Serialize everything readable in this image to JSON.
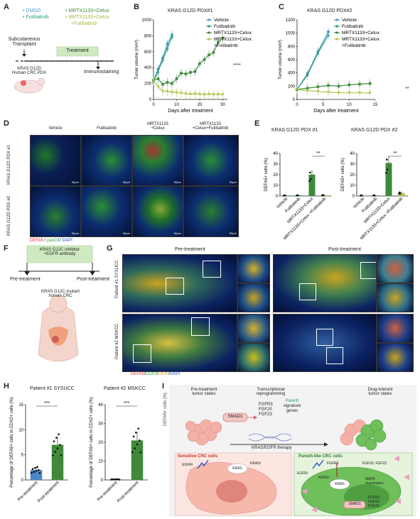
{
  "panels": {
    "A": {
      "letter": "A",
      "legend": [
        "• DMSO",
        "• Futibatinib",
        "• MRTX1133+Cetux",
        "• MRTX1133+Cetux",
        "+Futibatinib"
      ],
      "transplant": [
        "Subcutaneous",
        "Transplant"
      ],
      "treatment": "Treatment",
      "immuno": "Immunostaining",
      "model": [
        "KRAS G12D",
        "Human CRC PDX"
      ]
    },
    "B": {
      "letter": "B",
      "title": "KRAS G12D PDX#1",
      "sig": "****"
    },
    "C": {
      "letter": "C",
      "title": "KRAS G12D PDX#2",
      "sig": "**"
    },
    "D": {
      "letter": "D",
      "cols": [
        "Vehicle",
        "Futibatinib",
        "MRTX1133",
        "+Cetux",
        "MRTX1133",
        "+Cetux+Futibatinib"
      ],
      "rows": [
        "KRAS G12D PDX #1",
        "KRAS G12D PDX #2"
      ],
      "scalebar": "50µm",
      "stain": {
        "defa5": "DEFA5",
        "sep1": " / ",
        "panck": "panCK",
        "sep2": "/ ",
        "dapi": "DAPI"
      }
    },
    "E": {
      "letter": "E",
      "titles": [
        "KRAS G12D PDX #1",
        "KRAS G12D PDX #2"
      ],
      "sig": "**"
    },
    "F": {
      "letter": "F",
      "box": [
        "KRAS G12C inhibitor",
        "+EGFR antibody"
      ],
      "pre": "Pre-treatment",
      "post": "Post-treatment",
      "model": [
        "KRAS G12C-mutant",
        "human CRC"
      ]
    },
    "G": {
      "letter": "G",
      "headers": [
        "Pre-treatment",
        "Post-treatment"
      ],
      "rows": [
        "Patient #1 SYSUCC",
        "Patient #2 MSKCC"
      ],
      "stain": {
        "defa5": "DEFA5",
        "s1": "/",
        "cdx2": "CDX2",
        "s2": "/",
        "ck20": "CK20",
        "s3": "/",
        "dapi": "DAPI"
      }
    },
    "H": {
      "letter": "H",
      "titles": [
        "Patient #1 SYSUCC",
        "Patient #2 MSKCC"
      ],
      "sig": "***"
    },
    "I": {
      "letter": "I",
      "pre_state": [
        "Pre-treatment",
        "tumor states"
      ],
      "reprogram": [
        "Transcriptional",
        "reprogramming"
      ],
      "smad1": "SMAD1",
      "genes": [
        "FGFR3",
        "FGF20",
        "FGF23"
      ],
      "paneth": [
        "Paneth",
        "signature",
        "genes"
      ],
      "therapy": "KRAS/EGFR therapy",
      "tolerant": [
        "Drug-tolerant",
        "tumor states"
      ],
      "sensitive_title": "Sensitive CRC cells",
      "paneth_title": "Paneth-like CRC cells",
      "egfri": "EGFRi",
      "kras": "KRAS",
      "krasi": "KRASi",
      "fgfr3": "FGFR3",
      "fgf": "FGF20, FGF23",
      "mapk": [
        "MAPK",
        "reactivation"
      ],
      "ygap": "DEFA5+ cells (%)"
    }
  },
  "chart_data": [
    {
      "id": "B",
      "type": "line",
      "title": "KRAS G12D PDX#1",
      "xlabel": "Days after treatment",
      "ylabel": "Tumor volume (mm³)",
      "xlim": [
        0,
        32
      ],
      "ylim": [
        0,
        1000
      ],
      "xticks": [
        0,
        10,
        20,
        30
      ],
      "yticks": [
        0,
        200,
        400,
        600,
        800,
        1000
      ],
      "legend": [
        "Vehicle",
        "Futibatinib",
        "MRTX1133+Cetux",
        "MRTX1133+Cetux",
        "+Futibatinib"
      ],
      "series": [
        {
          "name": "Vehicle",
          "color": "#4a9cd0",
          "x": [
            0,
            2,
            4,
            6,
            8
          ],
          "y": [
            240,
            380,
            520,
            700,
            810
          ]
        },
        {
          "name": "Futibatinib",
          "color": "#2f9c7e",
          "x": [
            0,
            2,
            4,
            6,
            8
          ],
          "y": [
            230,
            350,
            500,
            640,
            790
          ]
        },
        {
          "name": "MRTX1133+Cetux",
          "color": "#3f8a3a",
          "x": [
            0,
            2,
            4,
            6,
            8,
            10,
            12,
            14,
            16,
            18,
            20,
            22,
            24,
            26,
            28,
            30
          ],
          "y": [
            240,
            260,
            190,
            215,
            200,
            260,
            330,
            320,
            340,
            350,
            450,
            500,
            560,
            590,
            720,
            770
          ]
        },
        {
          "name": "MRTX1133+Cetux +Futibatinib",
          "color": "#b2c44a",
          "x": [
            0,
            2,
            4,
            6,
            8,
            10,
            12,
            14,
            16,
            18,
            20,
            22,
            24,
            26,
            28,
            30
          ],
          "y": [
            235,
            160,
            100,
            100,
            90,
            85,
            80,
            70,
            65,
            70,
            65,
            60,
            65,
            60,
            62,
            60
          ]
        }
      ]
    },
    {
      "id": "C",
      "type": "line",
      "title": "KRAS G12D PDX#2",
      "xlabel": "Days after treatment",
      "ylabel": "Tumor volume (mm³)",
      "xlim": [
        0,
        15
      ],
      "ylim": [
        0,
        1200
      ],
      "xticks": [
        0,
        5,
        10,
        15
      ],
      "yticks": [
        0,
        200,
        400,
        600,
        800,
        1000,
        1200
      ],
      "legend": [
        "Vehicle",
        "Futibatinib",
        "MRTX1133+Cetux",
        "MRTX1133+Cetux",
        "+Futibatinib"
      ],
      "series": [
        {
          "name": "Vehicle",
          "color": "#4a9cd0",
          "x": [
            0,
            2,
            4,
            6
          ],
          "y": [
            150,
            390,
            720,
            1020
          ]
        },
        {
          "name": "Futibatinib",
          "color": "#2f9c7e",
          "x": [
            0,
            2,
            4,
            6
          ],
          "y": [
            150,
            370,
            700,
            970
          ]
        },
        {
          "name": "MRTX1133+Cetux",
          "color": "#3f8a3a",
          "x": [
            0,
            2,
            4,
            6,
            8,
            10,
            12,
            14
          ],
          "y": [
            150,
            170,
            190,
            210,
            200,
            220,
            230,
            240
          ]
        },
        {
          "name": "MRTX1133+Cetux +Futibatinib",
          "color": "#b2c44a",
          "x": [
            0,
            2,
            4,
            6,
            8,
            10,
            12,
            14
          ],
          "y": [
            150,
            130,
            120,
            110,
            100,
            100,
            100,
            95
          ]
        }
      ]
    },
    {
      "id": "E1",
      "type": "bar",
      "title": "KRAS G12D PDX #1",
      "ylabel": "DEFA5+ cells (%)",
      "ylim": [
        0,
        40
      ],
      "yticks": [
        0,
        10,
        20,
        30,
        40
      ],
      "categories": [
        "Vehicle",
        "Futibatinib",
        "MRTX1133+Cetux",
        "MRTX1133+Cetux +Futibatinib"
      ],
      "values": [
        0.5,
        0.6,
        20,
        0.8
      ],
      "colors": [
        "#4a9cd0",
        "#2f9c7e",
        "#3f8a3a",
        "#b2c44a"
      ]
    },
    {
      "id": "E2",
      "type": "bar",
      "title": "KRAS G12D PDX #2",
      "ylabel": "DEFA5+ cells (%)",
      "ylim": [
        0,
        40
      ],
      "yticks": [
        0,
        10,
        20,
        30,
        40
      ],
      "categories": [
        "Vehicle",
        "Futibatinib",
        "MRTX1133+Cetux",
        "MRTX1133+Cetux +Futibatinib"
      ],
      "values": [
        0.5,
        0.5,
        31,
        3
      ],
      "colors": [
        "#4a9cd0",
        "#2f9c7e",
        "#3f8a3a",
        "#b2c44a"
      ]
    },
    {
      "id": "H1",
      "type": "bar",
      "title": "Patient #1 SYSUCC",
      "ylabel": "Percentage of DEFA5+ cells in CDX2+ cells (%)",
      "ylim": [
        0,
        15
      ],
      "yticks": [
        0,
        5,
        10,
        15
      ],
      "categories": [
        "Pre-treatment",
        "Post-treatment"
      ],
      "values": [
        2,
        7
      ],
      "colors": [
        "#4a86c5",
        "#3f8a3a"
      ]
    },
    {
      "id": "H2",
      "type": "bar",
      "title": "Patient #2 MSKCC",
      "ylabel": "Percentage of DEFA5+ cells in CDX2+ cells (%)",
      "ylim": [
        0,
        40
      ],
      "yticks": [
        0,
        10,
        20,
        30,
        40
      ],
      "categories": [
        "Pre-treatment",
        "Post-treatment"
      ],
      "values": [
        0.3,
        21
      ],
      "colors": [
        "#4a86c5",
        "#3f8a3a"
      ]
    }
  ]
}
